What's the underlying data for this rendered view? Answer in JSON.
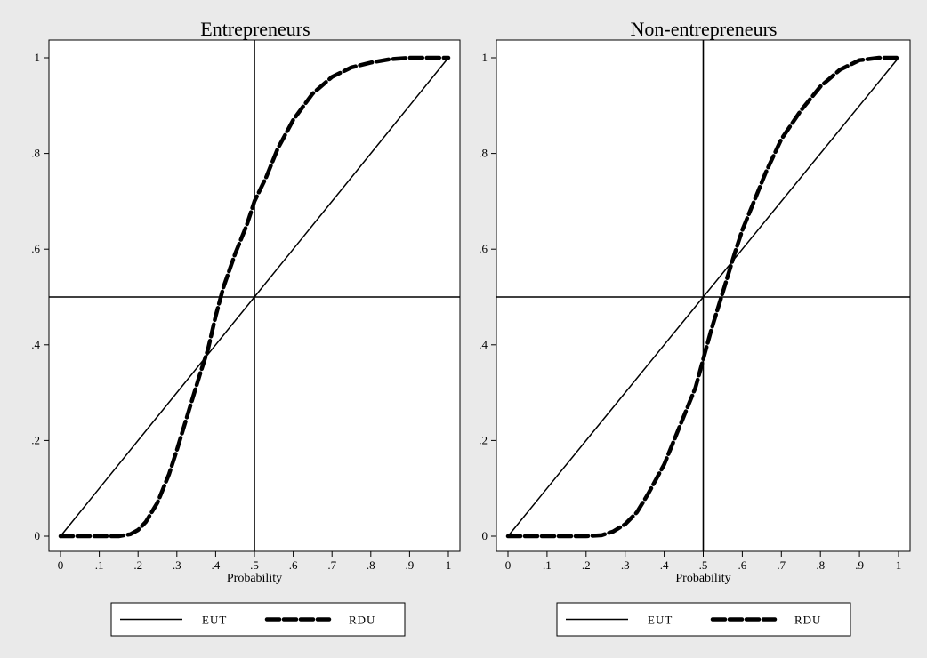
{
  "chart_data": [
    {
      "type": "line",
      "title": "Entrepreneurs",
      "xlabel": "Probability",
      "ylabel": "",
      "xlim": [
        0,
        1
      ],
      "ylim": [
        0,
        1
      ],
      "x_ticks": [
        "0",
        ".1",
        ".2",
        ".3",
        ".4",
        ".5",
        ".6",
        ".7",
        ".8",
        ".9",
        "1"
      ],
      "y_ticks": [
        "0",
        ".2",
        ".4",
        ".6",
        ".8",
        "1"
      ],
      "reference_lines": {
        "x": 0.5,
        "y": 0.5
      },
      "grid": false,
      "legend_position": "bottom",
      "series": [
        {
          "name": "EUT",
          "style": "solid",
          "x": [
            0,
            0.1,
            0.2,
            0.3,
            0.4,
            0.5,
            0.6,
            0.7,
            0.8,
            0.9,
            1
          ],
          "y": [
            0,
            0.1,
            0.2,
            0.3,
            0.4,
            0.5,
            0.6,
            0.7,
            0.8,
            0.9,
            1
          ]
        },
        {
          "name": "RDU",
          "style": "dashed",
          "x": [
            0,
            0.05,
            0.1,
            0.15,
            0.18,
            0.2,
            0.22,
            0.25,
            0.28,
            0.3,
            0.33,
            0.36,
            0.38,
            0.4,
            0.42,
            0.45,
            0.48,
            0.5,
            0.53,
            0.56,
            0.6,
            0.65,
            0.7,
            0.75,
            0.8,
            0.85,
            0.9,
            1
          ],
          "y": [
            0,
            0,
            0,
            0,
            0.004,
            0.013,
            0.03,
            0.07,
            0.13,
            0.18,
            0.26,
            0.34,
            0.39,
            0.46,
            0.52,
            0.59,
            0.65,
            0.7,
            0.75,
            0.81,
            0.87,
            0.925,
            0.96,
            0.98,
            0.99,
            0.997,
            1,
            1
          ]
        }
      ]
    },
    {
      "type": "line",
      "title": "Non-entrepreneurs",
      "xlabel": "Probability",
      "ylabel": "",
      "xlim": [
        0,
        1
      ],
      "ylim": [
        0,
        1
      ],
      "x_ticks": [
        "0",
        ".1",
        ".2",
        ".3",
        ".4",
        ".5",
        ".6",
        ".7",
        ".8",
        ".9",
        "1"
      ],
      "y_ticks": [
        "0",
        ".2",
        ".4",
        ".6",
        ".8",
        "1"
      ],
      "reference_lines": {
        "x": 0.5,
        "y": 0.5
      },
      "grid": false,
      "legend_position": "bottom",
      "series": [
        {
          "name": "EUT",
          "style": "solid",
          "x": [
            0,
            0.1,
            0.2,
            0.3,
            0.4,
            0.5,
            0.6,
            0.7,
            0.8,
            0.9,
            1
          ],
          "y": [
            0,
            0.1,
            0.2,
            0.3,
            0.4,
            0.5,
            0.6,
            0.7,
            0.8,
            0.9,
            1
          ]
        },
        {
          "name": "RDU",
          "style": "dashed",
          "x": [
            0,
            0.05,
            0.1,
            0.15,
            0.2,
            0.24,
            0.27,
            0.3,
            0.33,
            0.36,
            0.4,
            0.43,
            0.46,
            0.48,
            0.5,
            0.52,
            0.55,
            0.58,
            0.6,
            0.63,
            0.66,
            0.7,
            0.75,
            0.8,
            0.85,
            0.9,
            0.95,
            1
          ],
          "y": [
            0,
            0,
            0,
            0,
            0,
            0.002,
            0.01,
            0.025,
            0.05,
            0.09,
            0.15,
            0.21,
            0.27,
            0.31,
            0.37,
            0.43,
            0.51,
            0.59,
            0.64,
            0.7,
            0.76,
            0.83,
            0.89,
            0.94,
            0.975,
            0.995,
            1,
            1
          ]
        }
      ]
    }
  ]
}
